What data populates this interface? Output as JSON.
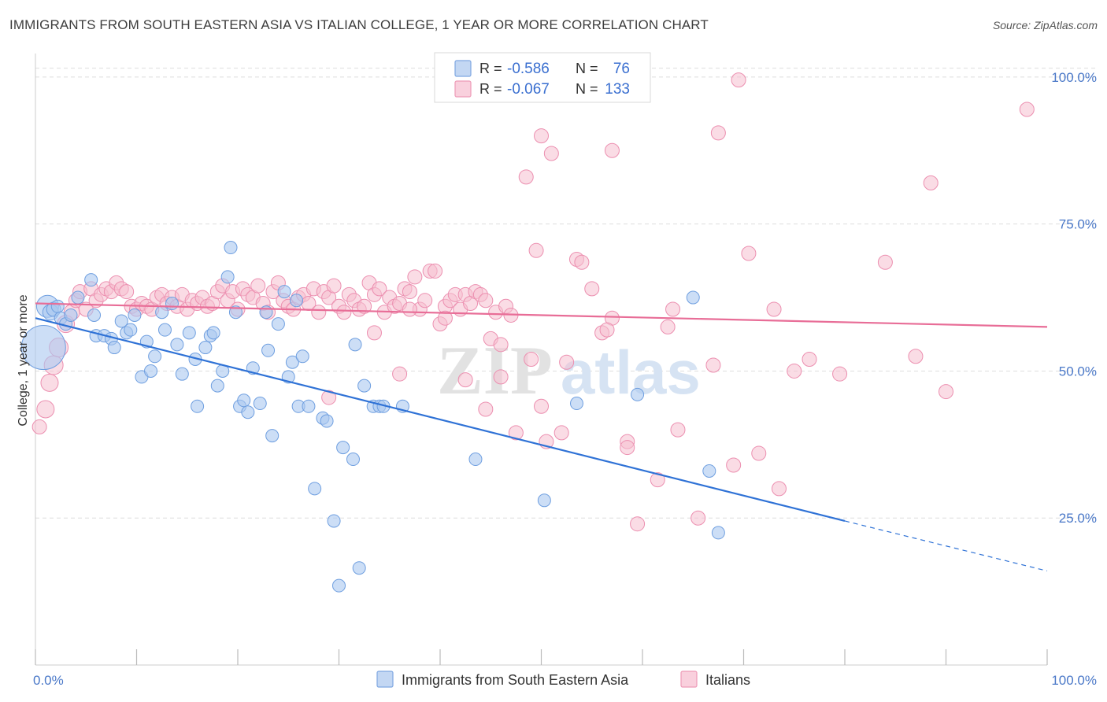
{
  "title": "IMMIGRANTS FROM SOUTH EASTERN ASIA VS ITALIAN COLLEGE, 1 YEAR OR MORE CORRELATION CHART",
  "source": "Source: ZipAtlas.com",
  "watermark": {
    "zip": "ZIP",
    "atlas": "atlas"
  },
  "legend": {
    "rows": [
      {
        "r_label": "R =",
        "r_value": "-0.586",
        "n_label": "N =",
        "n_value": "76"
      },
      {
        "r_label": "R =",
        "r_value": "-0.067",
        "n_label": "N =",
        "n_value": "133"
      }
    ]
  },
  "bottom_legend": [
    "Immigrants from South Eastern Asia",
    "Italians"
  ],
  "colors": {
    "blue_fill": "#aac8f0",
    "blue_stroke": "#6f9fe0",
    "blue_line": "#2f72d6",
    "pink_fill": "#f6bfd0",
    "pink_stroke": "#ec8fb0",
    "pink_line": "#e86d97",
    "grid": "#dddddd",
    "tick_label": "#4a78c8"
  },
  "chart_data": {
    "type": "scatter",
    "title": "IMMIGRANTS FROM SOUTH EASTERN ASIA VS ITALIAN COLLEGE, 1 YEAR OR MORE CORRELATION CHART",
    "xlabel": "",
    "ylabel": "College, 1 year or more",
    "xlim": [
      0,
      100
    ],
    "ylim": [
      0,
      104
    ],
    "x_ticks": [
      "0.0%",
      "100.0%"
    ],
    "y_ticks": [
      {
        "value": 25,
        "label": "25.0%"
      },
      {
        "value": 50,
        "label": "50.0%"
      },
      {
        "value": 75,
        "label": "75.0%"
      },
      {
        "value": 100,
        "label": "100.0%"
      }
    ],
    "grid": true,
    "legend_position": "top-center",
    "series": [
      {
        "name": "Immigrants from South Eastern Asia",
        "r": -0.586,
        "n": 76,
        "trend": {
          "x0": 0,
          "y0": 59,
          "x1": 80,
          "y1": 24.5,
          "x_dash_end": 100,
          "y_dash_end": 16
        },
        "points": [
          [
            0.8,
            54,
            28
          ],
          [
            1.2,
            61,
            14
          ],
          [
            1.5,
            60,
            10
          ],
          [
            1.8,
            60.5,
            9
          ],
          [
            2.2,
            61,
            8
          ],
          [
            2.5,
            59,
            8
          ],
          [
            3,
            58,
            8
          ],
          [
            3.5,
            59.5,
            8
          ],
          [
            4.2,
            62.5,
            8
          ],
          [
            5.5,
            65.5,
            8
          ],
          [
            5.8,
            59.5,
            8
          ],
          [
            6,
            56,
            8
          ],
          [
            6.8,
            56,
            8
          ],
          [
            7.5,
            55.5,
            8
          ],
          [
            7.8,
            54,
            8
          ],
          [
            8.5,
            58.5,
            8
          ],
          [
            9,
            56.5,
            8
          ],
          [
            9.4,
            57,
            8
          ],
          [
            9.8,
            59.5,
            8
          ],
          [
            10.5,
            49,
            8
          ],
          [
            11,
            55,
            8
          ],
          [
            11.4,
            50,
            8
          ],
          [
            11.8,
            52.5,
            8
          ],
          [
            12.5,
            60,
            8
          ],
          [
            12.8,
            57,
            8
          ],
          [
            13.5,
            61.5,
            8
          ],
          [
            14,
            54.5,
            8
          ],
          [
            14.5,
            49.5,
            8
          ],
          [
            15.2,
            56.5,
            8
          ],
          [
            15.8,
            52,
            8
          ],
          [
            16,
            44,
            8
          ],
          [
            16.8,
            54,
            8
          ],
          [
            17.3,
            56,
            8
          ],
          [
            17.6,
            56.5,
            8
          ],
          [
            18,
            47.5,
            8
          ],
          [
            18.5,
            50,
            8
          ],
          [
            19,
            66,
            8
          ],
          [
            19.3,
            71,
            8
          ],
          [
            19.8,
            60,
            8
          ],
          [
            20.2,
            44,
            8
          ],
          [
            20.6,
            45,
            8
          ],
          [
            21,
            43,
            8
          ],
          [
            21.5,
            50.5,
            8
          ],
          [
            22.8,
            60,
            8
          ],
          [
            22.2,
            44.5,
            8
          ],
          [
            23,
            53.5,
            8
          ],
          [
            23.4,
            39,
            8
          ],
          [
            24,
            58,
            8
          ],
          [
            24.6,
            63.5,
            8
          ],
          [
            25,
            49,
            8
          ],
          [
            25.4,
            51.5,
            8
          ],
          [
            25.8,
            62,
            8
          ],
          [
            26,
            44,
            8
          ],
          [
            26.4,
            52.5,
            8
          ],
          [
            27,
            44,
            8
          ],
          [
            27.6,
            30,
            8
          ],
          [
            28.4,
            42,
            8
          ],
          [
            28.8,
            41.5,
            8
          ],
          [
            30.4,
            37,
            8
          ],
          [
            31.4,
            35,
            8
          ],
          [
            31.6,
            54.5,
            8
          ],
          [
            32.5,
            47.5,
            8
          ],
          [
            33.4,
            44,
            8
          ],
          [
            34,
            44,
            8
          ],
          [
            34.4,
            44,
            8
          ],
          [
            36.3,
            44,
            8
          ],
          [
            30,
            13.5,
            8
          ],
          [
            29.5,
            24.5,
            8
          ],
          [
            32,
            16.5,
            8
          ],
          [
            43.5,
            35,
            8
          ],
          [
            50.3,
            28,
            8
          ],
          [
            53.5,
            44.5,
            8
          ],
          [
            59.5,
            46,
            8
          ],
          [
            65,
            62.5,
            8
          ],
          [
            66.6,
            33,
            8
          ],
          [
            67.5,
            22.5,
            8
          ]
        ]
      },
      {
        "name": "Italians",
        "r": -0.067,
        "n": 133,
        "trend": {
          "x0": 0,
          "y0": 61.5,
          "x1": 100,
          "y1": 57.5
        },
        "points": [
          [
            0.4,
            40.5,
            9
          ],
          [
            1,
            43.5,
            11
          ],
          [
            1.4,
            48,
            11
          ],
          [
            1.8,
            51,
            12
          ],
          [
            2.3,
            54,
            12
          ],
          [
            3,
            58,
            11
          ],
          [
            3.6,
            60,
            10
          ],
          [
            4,
            62,
            9
          ],
          [
            4.4,
            63.5,
            9
          ],
          [
            5,
            60.5,
            9
          ],
          [
            5.5,
            64,
            9
          ],
          [
            6,
            62,
            9
          ],
          [
            6.5,
            63,
            9
          ],
          [
            7,
            64,
            9
          ],
          [
            7.5,
            63.5,
            9
          ],
          [
            8,
            65,
            9
          ],
          [
            8.5,
            64,
            9
          ],
          [
            9,
            63.5,
            9
          ],
          [
            9.5,
            61,
            9
          ],
          [
            10,
            60.5,
            9
          ],
          [
            10.5,
            61.5,
            9
          ],
          [
            11,
            61,
            9
          ],
          [
            11.5,
            60.5,
            9
          ],
          [
            12,
            62.5,
            9
          ],
          [
            12.5,
            63,
            9
          ],
          [
            13,
            61.5,
            9
          ],
          [
            13.5,
            62.5,
            9
          ],
          [
            14,
            61,
            9
          ],
          [
            14.5,
            63,
            9
          ],
          [
            15,
            60.5,
            9
          ],
          [
            15.5,
            62,
            9
          ],
          [
            16,
            61.5,
            9
          ],
          [
            16.5,
            62.5,
            9
          ],
          [
            17,
            61,
            9
          ],
          [
            17.5,
            61.5,
            9
          ],
          [
            18,
            63.5,
            9
          ],
          [
            18.5,
            64.5,
            9
          ],
          [
            19,
            62,
            9
          ],
          [
            19.5,
            63.5,
            9
          ],
          [
            20,
            60.5,
            9
          ],
          [
            20.5,
            64,
            9
          ],
          [
            21,
            63,
            9
          ],
          [
            21.5,
            62.5,
            9
          ],
          [
            22,
            64.5,
            9
          ],
          [
            22.5,
            61.5,
            9
          ],
          [
            23,
            60,
            9
          ],
          [
            23.5,
            63.5,
            9
          ],
          [
            24,
            65,
            9
          ],
          [
            24.5,
            62,
            9
          ],
          [
            25,
            61,
            9
          ],
          [
            25.5,
            60.5,
            9
          ],
          [
            26,
            62.5,
            9
          ],
          [
            26.5,
            63,
            9
          ],
          [
            27,
            61.5,
            9
          ],
          [
            27.5,
            64,
            9
          ],
          [
            28,
            60,
            9
          ],
          [
            28.5,
            63.5,
            9
          ],
          [
            29,
            62.5,
            9
          ],
          [
            29.5,
            64.5,
            9
          ],
          [
            30,
            61,
            9
          ],
          [
            30.5,
            60,
            9
          ],
          [
            31,
            63,
            9
          ],
          [
            31.5,
            62,
            9
          ],
          [
            32,
            60.5,
            9
          ],
          [
            32.5,
            61,
            9
          ],
          [
            33,
            65,
            9
          ],
          [
            33.5,
            63,
            9
          ],
          [
            34,
            64,
            9
          ],
          [
            34.5,
            60,
            9
          ],
          [
            35,
            62.5,
            9
          ],
          [
            35.5,
            61,
            9
          ],
          [
            36,
            61.5,
            9
          ],
          [
            36.5,
            64,
            9
          ],
          [
            37,
            63.5,
            9
          ],
          [
            37.5,
            66,
            9
          ],
          [
            38,
            60.5,
            9
          ],
          [
            38.5,
            62,
            9
          ],
          [
            39,
            67,
            9
          ],
          [
            39.5,
            67,
            9
          ],
          [
            40,
            58,
            9
          ],
          [
            40.5,
            61,
            9
          ],
          [
            41,
            62,
            9
          ],
          [
            41.5,
            63,
            9
          ],
          [
            42,
            60.5,
            9
          ],
          [
            42.5,
            63,
            9
          ],
          [
            43,
            61.5,
            9
          ],
          [
            43.5,
            63.5,
            9
          ],
          [
            44,
            63,
            9
          ],
          [
            44.5,
            62,
            9
          ],
          [
            45,
            55.5,
            9
          ],
          [
            45.5,
            60,
            9
          ],
          [
            46,
            54.5,
            9
          ],
          [
            46.5,
            61,
            9
          ],
          [
            47,
            59.5,
            9
          ],
          [
            36,
            49.5,
            9
          ],
          [
            29,
            45.5,
            9
          ],
          [
            33.5,
            56.5,
            9
          ],
          [
            37,
            60.5,
            9
          ],
          [
            40.5,
            59,
            9
          ],
          [
            42.5,
            48.5,
            9
          ],
          [
            44.5,
            43.5,
            9
          ],
          [
            46,
            49,
            9
          ],
          [
            47.5,
            39.5,
            9
          ],
          [
            49,
            52,
            9
          ],
          [
            50,
            44,
            9
          ],
          [
            50.5,
            38,
            9
          ],
          [
            52,
            39.5,
            9
          ],
          [
            52.5,
            51.5,
            9
          ],
          [
            53.5,
            69,
            9
          ],
          [
            54,
            68.5,
            9
          ],
          [
            55,
            64,
            9
          ],
          [
            56,
            56.5,
            9
          ],
          [
            57,
            59,
            9
          ],
          [
            58.5,
            38,
            9
          ],
          [
            59.5,
            24,
            9
          ],
          [
            61.5,
            31.5,
            9
          ],
          [
            63,
            60.5,
            9
          ],
          [
            63.5,
            40,
            9
          ],
          [
            65.5,
            25,
            9
          ],
          [
            67,
            51,
            9
          ],
          [
            69,
            34,
            9
          ],
          [
            70.5,
            70,
            9
          ],
          [
            71.5,
            36,
            9
          ],
          [
            73,
            60.5,
            9
          ],
          [
            73.5,
            30,
            9
          ],
          [
            75,
            50,
            9
          ],
          [
            76.5,
            52,
            9
          ],
          [
            79.5,
            49.5,
            9
          ],
          [
            84,
            68.5,
            9
          ],
          [
            87,
            52.5,
            9
          ],
          [
            88.5,
            82,
            9
          ],
          [
            90,
            46.5,
            9
          ],
          [
            98,
            94.5,
            9
          ],
          [
            50,
            90,
            9
          ],
          [
            51,
            87,
            9
          ],
          [
            57,
            87.5,
            9
          ],
          [
            48.5,
            83,
            9
          ],
          [
            67.5,
            90.5,
            9
          ],
          [
            69.5,
            99.5,
            9
          ],
          [
            49.5,
            70.5,
            9
          ],
          [
            56.5,
            57,
            9
          ],
          [
            58.5,
            37,
            9
          ],
          [
            62.5,
            57.5,
            9
          ]
        ]
      }
    ]
  }
}
